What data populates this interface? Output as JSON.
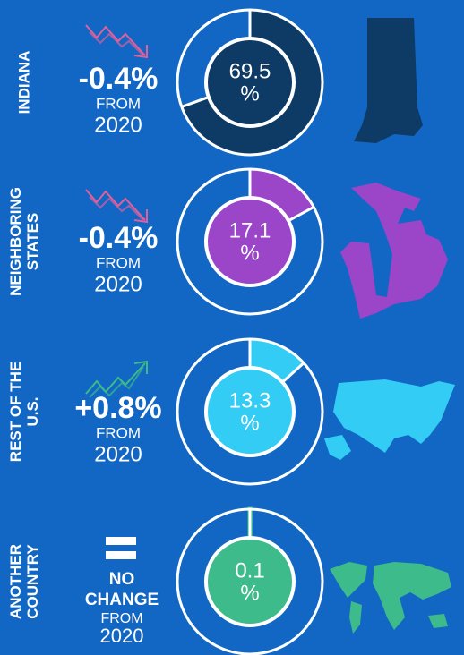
{
  "chart_data": [
    {
      "type": "donut",
      "title": [
        "INDIANA"
      ],
      "change": [
        "-0.4%"
      ],
      "note": [
        "FROM",
        "2020"
      ],
      "values": [
        69.5
      ],
      "unit": "%",
      "color": "#0e3a66"
    },
    {
      "type": "donut",
      "title": [
        "NEIGHBORING",
        "STATES"
      ],
      "change": [
        "-0.4%"
      ],
      "note": [
        "FROM",
        "2020"
      ],
      "values": [
        17.1
      ],
      "unit": "%",
      "color": "#9b45c9"
    },
    {
      "type": "donut",
      "title": [
        "REST OF THE",
        "U.S."
      ],
      "change": [
        "+0.8%"
      ],
      "note": [
        "FROM",
        "2020"
      ],
      "values": [
        13.3
      ],
      "unit": "%",
      "color": "#33ccf5"
    },
    {
      "type": "donut",
      "title": [
        "ANOTHER",
        "COUNTRY"
      ],
      "change": [
        "NO",
        "CHANGE"
      ],
      "note": [
        "FROM",
        "2020"
      ],
      "values": [
        0.1
      ],
      "unit": "%",
      "color": "#3dbb8a"
    }
  ]
}
